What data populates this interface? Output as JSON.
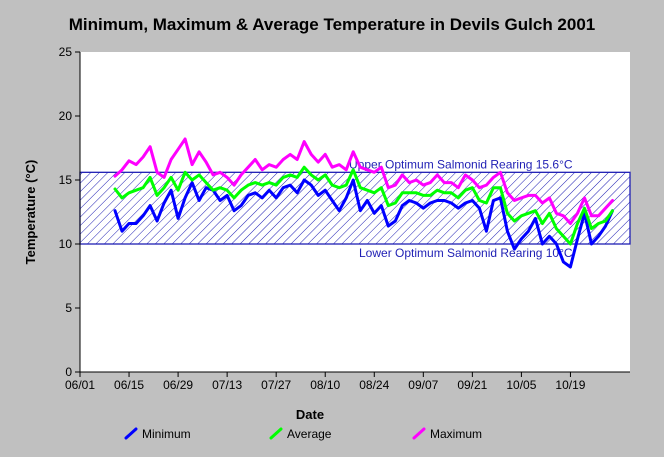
{
  "chart_data": {
    "type": "line",
    "title": "Minimum, Maximum & Average Temperature in Devils Gulch 2001",
    "xlabel": "Date",
    "ylabel": "Temperature (°C)",
    "x_tick_labels": [
      "06/01",
      "06/15",
      "06/29",
      "07/13",
      "07/27",
      "08/10",
      "08/24",
      "09/07",
      "09/21",
      "10/05",
      "10/19"
    ],
    "x_tick_days": [
      0,
      14,
      28,
      42,
      56,
      70,
      84,
      98,
      112,
      126,
      140
    ],
    "x_range_days": [
      0,
      157
    ],
    "y_ticks": [
      0,
      5,
      10,
      15,
      20,
      25
    ],
    "ylim": [
      0,
      25
    ],
    "grid": false,
    "legend_position": "bottom",
    "bands": [
      {
        "lower": 10,
        "upper": 15.6,
        "upper_label": "Upper Optimum Salmonid Rearing 15.6°C",
        "lower_label": "Lower Optimum Salmonid Rearing 10°C",
        "color": "#1f1fb4"
      }
    ],
    "x_days": [
      10,
      12,
      14,
      16,
      18,
      20,
      22,
      24,
      26,
      28,
      30,
      32,
      34,
      36,
      38,
      40,
      42,
      44,
      46,
      48,
      50,
      52,
      54,
      56,
      58,
      60,
      62,
      64,
      66,
      68,
      70,
      72,
      74,
      76,
      78,
      80,
      82,
      84,
      86,
      88,
      90,
      92,
      94,
      96,
      98,
      100,
      102,
      104,
      106,
      108,
      110,
      112,
      114,
      116,
      118,
      120,
      122,
      124,
      126,
      128,
      130,
      132,
      134,
      136,
      138,
      140,
      142,
      144,
      146,
      148,
      150,
      152
    ],
    "series": [
      {
        "name": "Minimum",
        "color": "#0000ff",
        "values": [
          12.6,
          11.0,
          11.6,
          11.6,
          12.2,
          13.0,
          11.8,
          13.2,
          14.2,
          12.0,
          13.6,
          14.8,
          13.4,
          14.4,
          14.2,
          13.4,
          13.8,
          12.6,
          13.0,
          13.8,
          14.0,
          13.6,
          14.2,
          13.6,
          14.4,
          14.6,
          14.0,
          15.0,
          14.6,
          13.8,
          14.2,
          13.4,
          12.6,
          13.6,
          15.0,
          12.6,
          13.4,
          12.4,
          13.0,
          11.4,
          11.8,
          13.0,
          13.4,
          13.2,
          12.8,
          13.2,
          13.4,
          13.4,
          13.2,
          12.8,
          13.2,
          13.4,
          12.8,
          11.0,
          13.4,
          13.6,
          11.0,
          9.6,
          10.4,
          11.0,
          12.0,
          10.0,
          10.6,
          10.0,
          8.6,
          8.2,
          10.4,
          12.4,
          10.0,
          10.6,
          11.4,
          12.6
        ]
      },
      {
        "name": "Average",
        "color": "#00ff00",
        "values": [
          14.3,
          13.6,
          14.0,
          14.2,
          14.4,
          15.2,
          13.8,
          14.4,
          15.2,
          14.2,
          15.6,
          15.0,
          15.4,
          14.8,
          14.2,
          14.4,
          14.2,
          13.6,
          14.2,
          14.6,
          14.8,
          14.6,
          14.8,
          14.6,
          15.2,
          15.4,
          15.2,
          16.0,
          15.4,
          15.0,
          15.4,
          14.6,
          14.4,
          14.6,
          15.8,
          14.4,
          14.2,
          14.0,
          14.4,
          13.0,
          13.2,
          14.0,
          14.0,
          14.0,
          13.8,
          13.8,
          14.2,
          14.0,
          14.0,
          13.6,
          14.2,
          14.4,
          13.4,
          13.2,
          14.4,
          14.4,
          12.4,
          11.8,
          12.2,
          12.4,
          12.6,
          11.6,
          12.4,
          11.2,
          10.6,
          10.0,
          11.6,
          12.8,
          11.2,
          11.6,
          11.8,
          12.6
        ]
      },
      {
        "name": "Maximum",
        "color": "#ff00ff",
        "values": [
          15.3,
          15.8,
          16.5,
          16.2,
          16.8,
          17.6,
          15.6,
          15.2,
          16.6,
          17.4,
          18.2,
          16.2,
          17.2,
          16.4,
          15.4,
          15.6,
          15.2,
          14.6,
          15.4,
          16.0,
          16.6,
          15.8,
          16.2,
          16.0,
          16.6,
          17.0,
          16.6,
          18.0,
          17.0,
          16.4,
          17.0,
          16.0,
          16.2,
          15.8,
          17.2,
          16.0,
          15.8,
          15.6,
          16.0,
          14.4,
          14.6,
          15.4,
          14.8,
          15.0,
          14.6,
          14.8,
          15.4,
          14.8,
          14.8,
          14.4,
          15.4,
          15.0,
          14.4,
          14.6,
          15.2,
          15.6,
          14.0,
          13.4,
          13.6,
          13.8,
          13.8,
          13.2,
          13.6,
          12.4,
          12.2,
          11.6,
          12.4,
          13.6,
          12.2,
          12.2,
          12.8,
          13.4
        ]
      }
    ]
  }
}
